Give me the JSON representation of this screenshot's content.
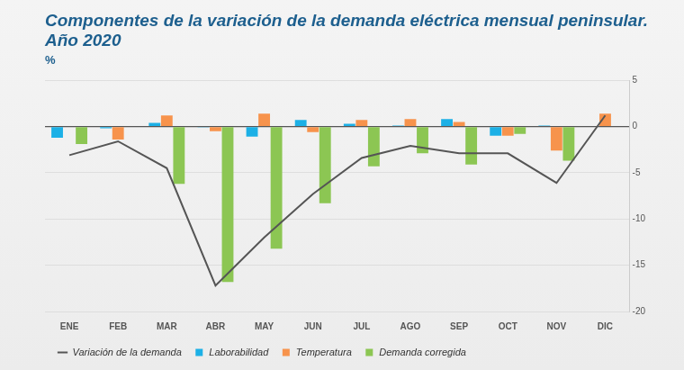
{
  "chart_data": {
    "type": "bar",
    "title": [
      "Componentes de la variación de la demanda eléctrica mensual peninsular.",
      "Año 2020"
    ],
    "ylabel": "%",
    "categories": [
      "ENE",
      "FEB",
      "MAR",
      "ABR",
      "MAY",
      "JUN",
      "JUL",
      "AGO",
      "SEP",
      "OCT",
      "NOV",
      "DIC"
    ],
    "series": [
      {
        "name": "Laborabilidad",
        "color": "#1cb0e6",
        "values": [
          -1.2,
          -0.2,
          0.4,
          -0.1,
          -1.1,
          0.7,
          0.3,
          0.1,
          0.8,
          -1.0,
          0.1,
          0
        ]
      },
      {
        "name": "Temperatura",
        "color": "#f7934c",
        "values": [
          0,
          -1.4,
          1.2,
          -0.5,
          1.4,
          -0.6,
          0.7,
          0.8,
          0.5,
          -1.0,
          -2.6,
          1.4
        ]
      },
      {
        "name": "Demanda corregida",
        "color": "#8cc653",
        "values": [
          -1.9,
          0,
          -6.2,
          -16.8,
          -13.2,
          -8.3,
          -4.3,
          -2.9,
          -4.1,
          -0.8,
          -3.7,
          0
        ]
      },
      {
        "name": "Variación de la demanda",
        "type": "line",
        "color": "#555555",
        "values": [
          -3.1,
          -1.6,
          -4.5,
          -17.2,
          -12.0,
          -7.3,
          -3.4,
          -2.1,
          -2.9,
          -2.9,
          -6.1,
          1.2
        ]
      }
    ],
    "ylim": [
      -20,
      5
    ],
    "yticks": [
      -20,
      -15,
      -10,
      -5,
      0,
      5
    ],
    "grid": true,
    "legend": "bottom-left"
  }
}
